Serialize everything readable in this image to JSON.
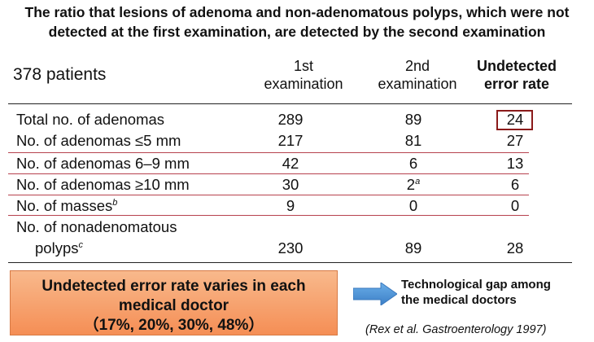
{
  "title": {
    "line1": "The ratio that lesions of adenoma and non-adenomatous polyps, which were not",
    "line2": "detected at the first examination,  are detected by the second examination"
  },
  "patients": "378 patients",
  "headers": {
    "col1_line1": "1st",
    "col1_line2": "examination",
    "col2_line1": "2nd",
    "col2_line2": "examination",
    "col3_line1": "Undetected",
    "col3_line2": "error rate"
  },
  "rows": [
    {
      "label": "Total no. of adenomas",
      "sup": "",
      "first": "289",
      "second": "89",
      "second_sup": "",
      "rate": "24"
    },
    {
      "label": "No. of adenomas ≤5 mm",
      "sup": "",
      "first": "217",
      "second": "81",
      "second_sup": "",
      "rate": "27"
    },
    {
      "label": "No. of adenomas 6–9 mm",
      "sup": "",
      "first": "42",
      "second": "6",
      "second_sup": "",
      "rate": "13"
    },
    {
      "label": "No. of adenomas ≥10 mm",
      "sup": "",
      "first": "30",
      "second": "2",
      "second_sup": "a",
      "rate": "6"
    },
    {
      "label": "No. of masses",
      "sup": "b",
      "first": "9",
      "second": "0",
      "second_sup": "",
      "rate": "0"
    }
  ],
  "last_row": {
    "label_line1": "No. of nonadenomatous",
    "label_line2": "polyps",
    "sup": "c",
    "first": "230",
    "second": "89",
    "rate": "28"
  },
  "callout": {
    "line1": "Undetected error rate varies in each",
    "line2": "medical doctor",
    "line3": "（17%, 20%, 30%, 48%）"
  },
  "gap_text": {
    "line1": "Technological gap among",
    "line2": "the medical doctors"
  },
  "citation": "(Rex et al. Gastroenterology 1997)",
  "icons": {
    "arrow": "right-arrow-icon"
  },
  "colors": {
    "highlight": "#8b1a1a",
    "red_rule": "#b7424e",
    "callout_bg": "#f58e55",
    "arrow": "#4a90d9"
  }
}
